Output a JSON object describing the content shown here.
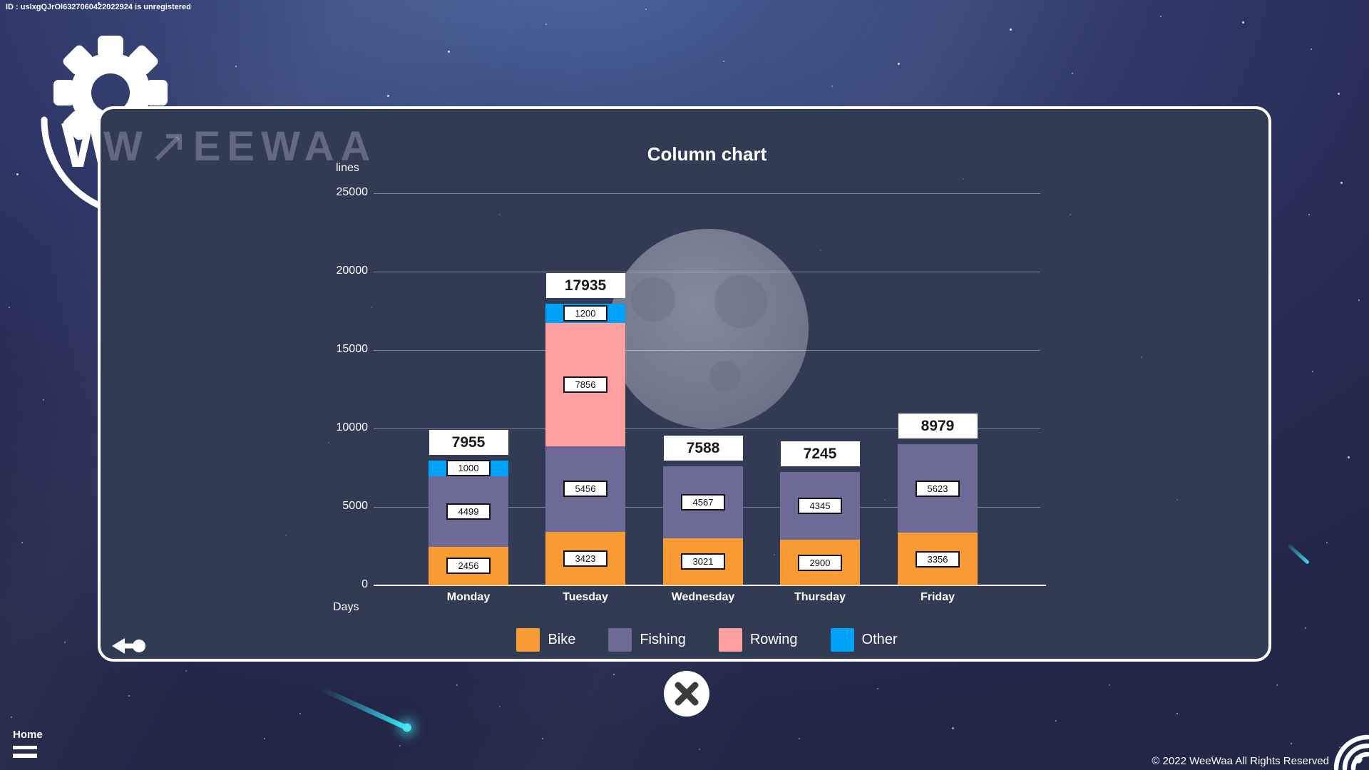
{
  "app": {
    "id_notice": "ID : uslxgQJrOl6327060422022924 is unregistered",
    "logo_monogram": "W",
    "watermark_prefix": "W",
    "watermark_brand": "EEWAA",
    "home_label": "Home",
    "copyright": "© 2022 WeeWaa All Rights Reserved"
  },
  "icons": {
    "gear_icon": "gear",
    "arrow_up_right_icon": "↗",
    "back_icon": "arrow-left-with-dot",
    "close_icon": "✕",
    "hamburger_icon": "double-bar-menu",
    "wifi_icon": "signal-arcs",
    "comet_color": "#37DCEC"
  },
  "chart_data": {
    "type": "bar",
    "stacked": true,
    "title": "Column chart",
    "ylabel": "lines",
    "xlabel": "Days",
    "ylim": [
      0,
      25000
    ],
    "yticks": [
      25000,
      20000,
      15000,
      10000,
      5000,
      0
    ],
    "grid": true,
    "legend_position": "bottom",
    "categories": [
      "Monday",
      "Tuesday",
      "Wednesday",
      "Thursday",
      "Friday"
    ],
    "series": [
      {
        "name": "Bike",
        "color": "#F89B35",
        "values": [
          2456,
          3423,
          3021,
          2900,
          3356
        ]
      },
      {
        "name": "Fishing",
        "color": "#6D6A97",
        "values": [
          4499,
          5456,
          4567,
          4345,
          5623
        ]
      },
      {
        "name": "Rowing",
        "color": "#FB9FA1",
        "values": [
          0,
          7856,
          0,
          0,
          0
        ]
      },
      {
        "name": "Other",
        "color": "#00A1F8",
        "values": [
          1000,
          1200,
          0,
          0,
          0
        ]
      }
    ],
    "totals": [
      7955,
      17935,
      7588,
      7245,
      8979
    ]
  }
}
